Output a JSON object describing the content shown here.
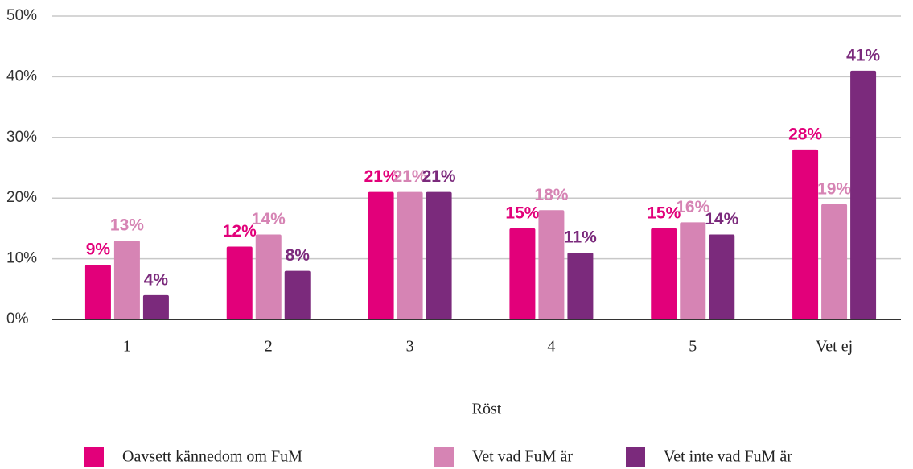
{
  "chart_data": {
    "type": "bar",
    "x_label": "Röst",
    "categories": [
      "1",
      "2",
      "3",
      "4",
      "5",
      "Vet ej"
    ],
    "series": [
      {
        "name": "Oavsett kännedom om FuM",
        "color": "#e2007a",
        "values": [
          9,
          12,
          21,
          15,
          15,
          28
        ],
        "value_labels": [
          "9%",
          "12%",
          "21%",
          "15%",
          "15%",
          "28%"
        ]
      },
      {
        "name": "Vet vad FuM är",
        "color": "#d684b4",
        "values": [
          13,
          14,
          21,
          18,
          16,
          19
        ],
        "value_labels": [
          "13%",
          "14%",
          "21%",
          "18%",
          "16%",
          "19%"
        ]
      },
      {
        "name": "Vet inte vad FuM är",
        "color": "#7b2a7c",
        "values": [
          4,
          8,
          21,
          11,
          14,
          41
        ],
        "value_labels": [
          "4%",
          "8%",
          "21%",
          "11%",
          "14%",
          "41%"
        ]
      }
    ],
    "ylim": [
      0,
      50
    ],
    "yticks": [
      {
        "value": 0,
        "label": "0%"
      },
      {
        "value": 10,
        "label": "10%"
      },
      {
        "value": 20,
        "label": "20%"
      },
      {
        "value": 30,
        "label": "30%"
      },
      {
        "value": 40,
        "label": "40%"
      },
      {
        "value": 50,
        "label": "50%"
      }
    ],
    "grid": true,
    "legend": "bottom"
  }
}
